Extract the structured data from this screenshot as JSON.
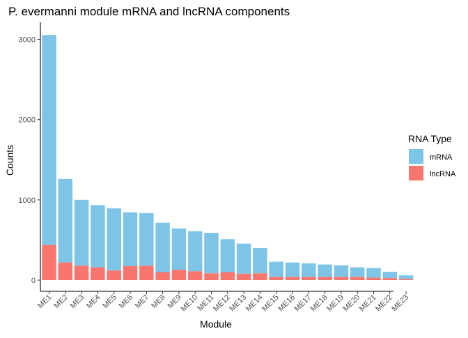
{
  "chart_data": {
    "type": "bar",
    "stacked": true,
    "title": "P. evermanni module mRNA and lncRNA components",
    "xlabel": "Module",
    "ylabel": "Counts",
    "ylim": [
      0,
      3150
    ],
    "yticks": [
      0,
      1000,
      2000,
      3000
    ],
    "grid": false,
    "legend": {
      "title": "RNA Type",
      "position": "right"
    },
    "categories": [
      "ME1",
      "ME2",
      "ME3",
      "ME4",
      "ME5",
      "ME6",
      "ME7",
      "ME8",
      "ME9",
      "ME10",
      "ME11",
      "ME12",
      "ME13",
      "ME14",
      "ME15",
      "ME16",
      "ME17",
      "ME18",
      "ME19",
      "ME20",
      "ME21",
      "ME22",
      "ME23"
    ],
    "series": [
      {
        "name": "mRNA",
        "color": "#7DC4E7",
        "values": [
          2615,
          1040,
          820,
          775,
          775,
          670,
          655,
          615,
          515,
          500,
          505,
          410,
          375,
          315,
          190,
          180,
          170,
          155,
          145,
          120,
          120,
          80,
          45
        ]
      },
      {
        "name": "lncRNA",
        "color": "#F8766D",
        "values": [
          440,
          220,
          180,
          160,
          120,
          175,
          180,
          100,
          130,
          110,
          85,
          100,
          80,
          85,
          40,
          40,
          40,
          40,
          40,
          40,
          30,
          25,
          15
        ]
      }
    ]
  }
}
